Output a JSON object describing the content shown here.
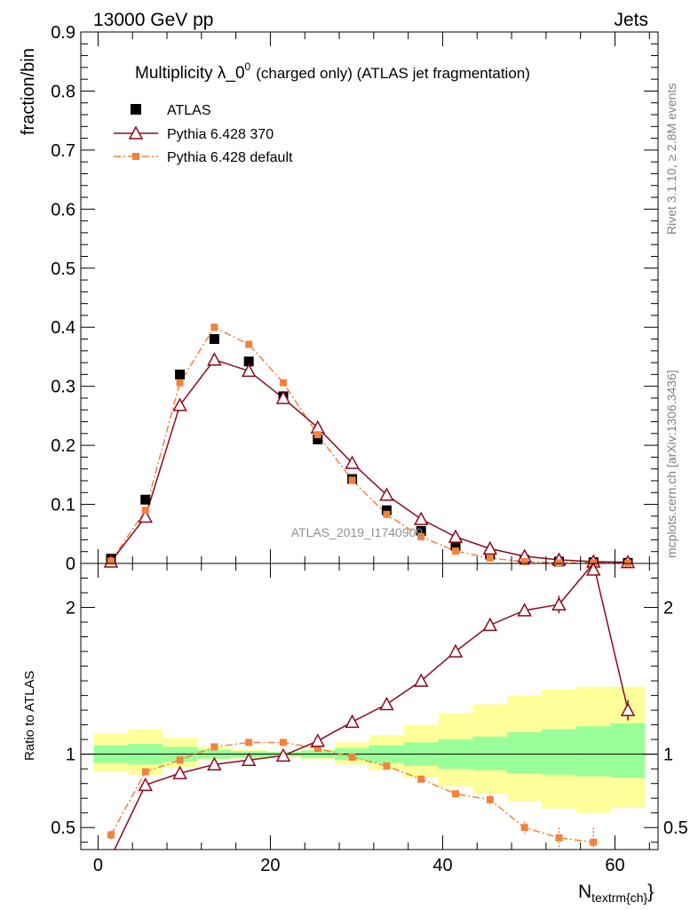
{
  "header": {
    "left": "13000 GeV pp",
    "right": "Jets"
  },
  "title": {
    "main": "Multiplicity λ_0",
    "sup": "0",
    "detail": "(charged only) (ATLAS jet fragmentation)"
  },
  "side_labels": {
    "rivet": "Rivet 3.1.10, ≥ 2.8M events",
    "mcplots": "mcplots.cern.ch [arXiv:1306.3436]"
  },
  "watermark": "ATLAS_2019_I1740909",
  "legend": {
    "position": "top-left",
    "entries": [
      "ATLAS",
      "Pythia 6.428 370",
      "Pythia 6.428 default"
    ]
  },
  "colors": {
    "data": "#000000",
    "p370": "#8b0a1e",
    "pdefault": "#f4813c",
    "band_inner": "#99ff99",
    "band_outer": "#ffff99"
  },
  "chart_data": [
    {
      "type": "scatter",
      "panel": "main",
      "ylabel": "fraction/bin",
      "xlim": [
        -2,
        65
      ],
      "ylim": [
        0,
        0.9
      ],
      "yticks": [
        0,
        0.1,
        0.2,
        0.3,
        0.4,
        0.5,
        0.6,
        0.7,
        0.8,
        0.9
      ],
      "ytick_labels": [
        "0",
        "0.1",
        "0.2",
        "0.3",
        "0.4",
        "0.5",
        "0.6",
        "0.7",
        "0.8",
        "0.9"
      ],
      "x": [
        1.5,
        5.5,
        9.5,
        13.5,
        17.5,
        21.5,
        25.5,
        29.5,
        33.5,
        37.5,
        41.5,
        45.5,
        49.5,
        53.5,
        57.5,
        61.5
      ],
      "series": [
        {
          "name": "ATLAS",
          "marker": "square",
          "values": [
            0.008,
            0.108,
            0.32,
            0.38,
            0.342,
            0.283,
            0.21,
            0.143,
            0.09,
            0.055,
            0.03,
            0.015,
            0.006,
            0.003,
            0.002,
            0.001
          ]
        },
        {
          "name": "Pythia 6.428 370",
          "marker": "triangle",
          "values": [
            0.003,
            0.079,
            0.268,
            0.345,
            0.326,
            0.28,
            0.23,
            0.17,
            0.116,
            0.075,
            0.045,
            0.025,
            0.012,
            0.006,
            0.003,
            0.002
          ]
        },
        {
          "name": "Pythia 6.428 default",
          "marker": "small-square",
          "values": [
            0.004,
            0.09,
            0.306,
            0.4,
            0.371,
            0.306,
            0.218,
            0.141,
            0.083,
            0.045,
            0.021,
            0.009,
            0.003,
            0.001,
            0.001,
            0.0005
          ]
        }
      ]
    },
    {
      "type": "line",
      "panel": "ratio",
      "ylabel": "Ratio to ATLAS",
      "xlabel": "N",
      "xlabel_sub": "textrm{ch}",
      "xlim": [
        -2,
        65
      ],
      "ylim": [
        0.35,
        2.3
      ],
      "yticks": [
        0.5,
        1,
        2
      ],
      "ytick_labels": [
        "0.5",
        "1",
        "2"
      ],
      "xticks": [
        0,
        20,
        40,
        60
      ],
      "xtick_labels": [
        "0",
        "20",
        "40",
        "60"
      ],
      "x": [
        1.5,
        5.5,
        9.5,
        13.5,
        17.5,
        21.5,
        25.5,
        29.5,
        33.5,
        37.5,
        41.5,
        45.5,
        49.5,
        53.5,
        57.5,
        61.5
      ],
      "bin_edges": [
        -0.5,
        3.5,
        7.5,
        11.5,
        15.5,
        19.5,
        23.5,
        27.5,
        31.5,
        35.5,
        39.5,
        43.5,
        47.5,
        51.5,
        55.5,
        59.5,
        63.5
      ],
      "band_inner": {
        "lo": [
          0.94,
          0.93,
          0.95,
          0.97,
          0.98,
          0.985,
          0.975,
          0.96,
          0.94,
          0.92,
          0.9,
          0.89,
          0.87,
          0.86,
          0.85,
          0.84
        ],
        "hi": [
          1.06,
          1.07,
          1.05,
          1.03,
          1.02,
          1.015,
          1.025,
          1.04,
          1.06,
          1.08,
          1.1,
          1.12,
          1.15,
          1.17,
          1.19,
          1.21
        ]
      },
      "band_outer": {
        "lo": [
          0.88,
          0.86,
          0.91,
          0.96,
          0.97,
          0.98,
          0.965,
          0.93,
          0.89,
          0.84,
          0.78,
          0.73,
          0.68,
          0.63,
          0.6,
          0.64
        ],
        "hi": [
          1.14,
          1.17,
          1.11,
          1.05,
          1.03,
          1.02,
          1.035,
          1.08,
          1.13,
          1.2,
          1.28,
          1.34,
          1.4,
          1.44,
          1.46,
          1.46
        ]
      },
      "series": [
        {
          "name": "Pythia 6.428 370",
          "values": [
            0.3,
            0.79,
            0.87,
            0.93,
            0.96,
            0.99,
            1.09,
            1.22,
            1.34,
            1.5,
            1.7,
            1.88,
            1.98,
            2.02,
            2.3,
            1.3
          ],
          "err": [
            0,
            0,
            0,
            0,
            0,
            0,
            0,
            0,
            0,
            0,
            0,
            0,
            0.04,
            0.06,
            0.08,
            0.07
          ]
        },
        {
          "name": "Pythia 6.428 default",
          "values": [
            0.45,
            0.88,
            0.96,
            1.05,
            1.08,
            1.08,
            1.04,
            0.98,
            0.92,
            0.83,
            0.73,
            0.69,
            0.5,
            0.43,
            0.4,
            null
          ],
          "err": [
            0.03,
            0,
            0,
            0,
            0,
            0,
            0,
            0,
            0,
            0.01,
            0.02,
            0.03,
            0.04,
            0.07,
            0.1,
            0
          ]
        }
      ]
    }
  ]
}
